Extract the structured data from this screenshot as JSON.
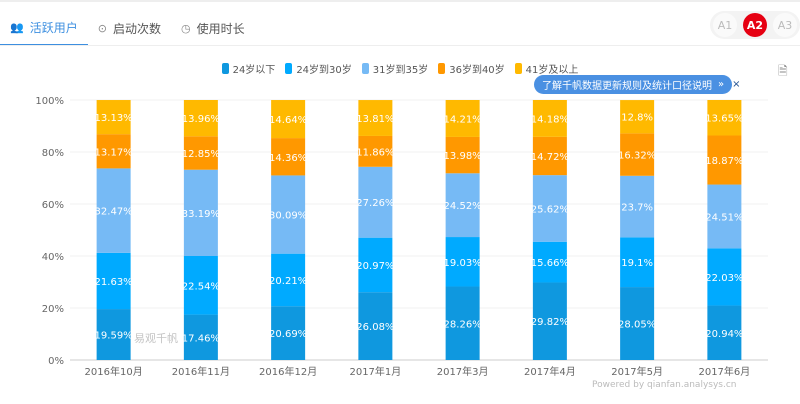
{
  "tabs": [
    {
      "label": "活跃用户",
      "icon": "users-icon",
      "active": true
    },
    {
      "label": "启动次数",
      "icon": "play-circle-icon"
    },
    {
      "label": "使用时长",
      "icon": "clock-icon"
    }
  ],
  "switcher": [
    "A1",
    "A2",
    "A3"
  ],
  "switcher_active": "A2",
  "tooltip": {
    "text": "了解千帆数据更新规则及统计口径说明",
    "arrow": "»",
    "close": "×"
  },
  "watermark": "易观千帆",
  "powered": "Powered by qianfan.analysys.cn",
  "chart_data": {
    "type": "bar",
    "stacked": true,
    "categories": [
      "2016年10月",
      "2016年11月",
      "2016年12月",
      "2017年1月",
      "2017年3月",
      "2017年4月",
      "2017年5月",
      "2017年6月"
    ],
    "yticks": [
      "0%",
      "20%",
      "40%",
      "60%",
      "80%",
      "100%"
    ],
    "ylim": [
      0,
      100
    ],
    "grid": true,
    "legend": "top",
    "series": [
      {
        "name": "24岁以下",
        "color": "#0f98df",
        "values": [
          19.59,
          17.46,
          20.69,
          26.08,
          28.26,
          29.82,
          28.05,
          20.94
        ]
      },
      {
        "name": "24岁到30岁",
        "color": "#00aaff",
        "values": [
          21.63,
          22.54,
          20.21,
          20.97,
          19.03,
          15.66,
          19.1,
          22.03
        ]
      },
      {
        "name": "31岁到35岁",
        "color": "#76baf5",
        "values": [
          32.47,
          33.19,
          30.09,
          27.26,
          24.52,
          25.62,
          23.7,
          24.51
        ]
      },
      {
        "name": "36岁到40岁",
        "color": "#ff9800",
        "values": [
          13.17,
          12.85,
          14.36,
          11.86,
          13.98,
          14.72,
          16.32,
          18.87
        ]
      },
      {
        "name": "41岁及以上",
        "color": "#ffb900",
        "values": [
          13.13,
          13.96,
          14.64,
          13.81,
          14.21,
          14.18,
          12.8,
          13.65
        ]
      }
    ]
  }
}
